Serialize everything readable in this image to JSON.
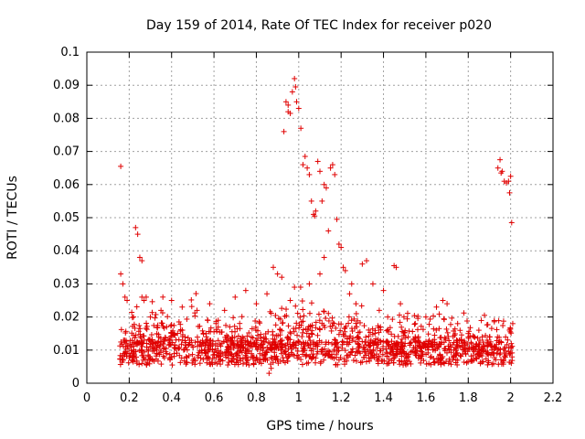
{
  "chart_data": {
    "type": "scatter",
    "title": "Day 159 of 2014, Rate Of TEC Index for receiver p020",
    "xlabel": "GPS time / hours",
    "ylabel": "ROTI / TECUs",
    "xlim": [
      0,
      2.2
    ],
    "ylim": [
      0,
      0.1
    ],
    "x_ticks": [
      0,
      0.2,
      0.4,
      0.6,
      0.8,
      1,
      1.2,
      1.4,
      1.6,
      1.8,
      2,
      2.2
    ],
    "x_tick_labels": [
      "0",
      "0.2",
      "0.4",
      "0.6",
      "0.8",
      "1",
      "1.2",
      "1.4",
      "1.6",
      "1.8",
      "2",
      "2.2"
    ],
    "y_ticks": [
      0,
      0.01,
      0.02,
      0.03,
      0.04,
      0.05,
      0.06,
      0.07,
      0.08,
      0.09,
      0.1
    ],
    "y_tick_labels": [
      "0",
      "0.01",
      "0.02",
      "0.03",
      "0.04",
      "0.05",
      "0.06",
      "0.07",
      "0.08",
      "0.09",
      "0.1"
    ],
    "grid": true,
    "marker": "plus",
    "color": "#e00000",
    "series": [
      {
        "name": "ROTI",
        "points": [
          [
            0.16,
            0.0655
          ],
          [
            0.16,
            0.033
          ],
          [
            0.17,
            0.03
          ],
          [
            0.18,
            0.026
          ],
          [
            0.19,
            0.025
          ],
          [
            0.22,
            0.02
          ],
          [
            0.23,
            0.047
          ],
          [
            0.24,
            0.045
          ],
          [
            0.25,
            0.038
          ],
          [
            0.26,
            0.037
          ],
          [
            0.26,
            0.026
          ],
          [
            0.27,
            0.025
          ],
          [
            0.28,
            0.026
          ],
          [
            0.3,
            0.02
          ],
          [
            0.35,
            0.022
          ],
          [
            0.4,
            0.025
          ],
          [
            0.45,
            0.023
          ],
          [
            0.52,
            0.022
          ],
          [
            0.58,
            0.024
          ],
          [
            0.65,
            0.022
          ],
          [
            0.7,
            0.026
          ],
          [
            0.75,
            0.028
          ],
          [
            0.8,
            0.024
          ],
          [
            0.85,
            0.027
          ],
          [
            0.86,
            0.003
          ],
          [
            0.87,
            0.0045
          ],
          [
            0.88,
            0.035
          ],
          [
            0.9,
            0.033
          ],
          [
            0.92,
            0.032
          ],
          [
            0.93,
            0.076
          ],
          [
            0.94,
            0.085
          ],
          [
            0.95,
            0.084
          ],
          [
            0.95,
            0.082
          ],
          [
            0.96,
            0.0815
          ],
          [
            0.97,
            0.088
          ],
          [
            0.98,
            0.092
          ],
          [
            0.985,
            0.0895
          ],
          [
            0.99,
            0.085
          ],
          [
            1.0,
            0.083
          ],
          [
            1.01,
            0.077
          ],
          [
            1.02,
            0.066
          ],
          [
            1.03,
            0.0685
          ],
          [
            1.04,
            0.065
          ],
          [
            1.05,
            0.063
          ],
          [
            1.06,
            0.055
          ],
          [
            1.07,
            0.051
          ],
          [
            1.075,
            0.0505
          ],
          [
            1.08,
            0.052
          ],
          [
            1.09,
            0.067
          ],
          [
            1.1,
            0.064
          ],
          [
            1.11,
            0.055
          ],
          [
            1.12,
            0.06
          ],
          [
            1.13,
            0.059
          ],
          [
            1.14,
            0.046
          ],
          [
            1.15,
            0.065
          ],
          [
            1.16,
            0.066
          ],
          [
            1.17,
            0.063
          ],
          [
            1.18,
            0.0495
          ],
          [
            1.19,
            0.042
          ],
          [
            1.2,
            0.041
          ],
          [
            1.21,
            0.035
          ],
          [
            1.22,
            0.034
          ],
          [
            1.25,
            0.03
          ],
          [
            1.3,
            0.036
          ],
          [
            1.32,
            0.037
          ],
          [
            1.35,
            0.03
          ],
          [
            1.4,
            0.028
          ],
          [
            1.45,
            0.0355
          ],
          [
            1.46,
            0.035
          ],
          [
            1.48,
            0.024
          ],
          [
            1.55,
            0.018
          ],
          [
            1.6,
            0.02
          ],
          [
            1.65,
            0.023
          ],
          [
            1.68,
            0.025
          ],
          [
            1.7,
            0.024
          ],
          [
            1.75,
            0.018
          ],
          [
            1.8,
            0.015
          ],
          [
            1.85,
            0.016
          ],
          [
            1.9,
            0.014
          ],
          [
            1.94,
            0.065
          ],
          [
            1.95,
            0.0675
          ],
          [
            1.955,
            0.0635
          ],
          [
            1.96,
            0.064
          ],
          [
            1.97,
            0.061
          ],
          [
            1.98,
            0.0605
          ],
          [
            1.99,
            0.061
          ],
          [
            1.995,
            0.0575
          ],
          [
            2.0,
            0.0625
          ],
          [
            2.005,
            0.0485
          ],
          [
            2.01,
            0.018
          ],
          [
            1.12,
            0.038
          ],
          [
            1.1,
            0.033
          ],
          [
            1.05,
            0.03
          ],
          [
            0.98,
            0.029
          ],
          [
            0.96,
            0.025
          ],
          [
            1.24,
            0.027
          ],
          [
            1.27,
            0.024
          ],
          [
            1.38,
            0.022
          ],
          [
            1.42,
            0.02
          ],
          [
            0.62,
            0.019
          ]
        ]
      }
    ]
  }
}
